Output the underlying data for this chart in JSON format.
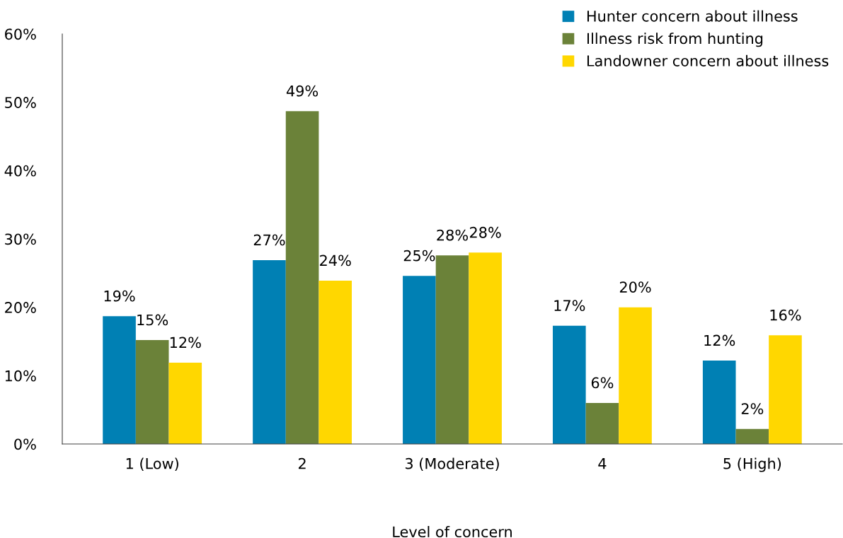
{
  "chart_data": {
    "type": "bar",
    "xlabel": "Level of concern",
    "categories": [
      "1 (Low)",
      "2",
      "3 (Moderate)",
      "4",
      "5 (High)"
    ],
    "series": [
      {
        "name": "Hunter concern about illness",
        "color": "#0080b4",
        "values": [
          18.7,
          26.9,
          24.6,
          17.3,
          12.2
        ],
        "value_labels": [
          "19%",
          "27%",
          "25%",
          "17%",
          "12%"
        ]
      },
      {
        "name": "Illness risk from hunting",
        "color": "#6b8239",
        "values": [
          15.2,
          48.7,
          27.6,
          6.0,
          2.2
        ],
        "value_labels": [
          "15%",
          "49%",
          "28%",
          "6%",
          "2%"
        ]
      },
      {
        "name": "Landowner concern about illness",
        "color": "#ffd700",
        "values": [
          11.9,
          23.9,
          28.0,
          20.0,
          15.9
        ],
        "value_labels": [
          "12%",
          "24%",
          "28%",
          "20%",
          "16%"
        ]
      }
    ],
    "ylim": [
      0,
      60
    ],
    "yticks": [
      {
        "value": 0,
        "label": "0%"
      },
      {
        "value": 10,
        "label": "10%"
      },
      {
        "value": 20,
        "label": "20%"
      },
      {
        "value": 30,
        "label": "30%"
      },
      {
        "value": 40,
        "label": "40%"
      },
      {
        "value": 50,
        "label": "50%"
      },
      {
        "value": 60,
        "label": "60%"
      }
    ],
    "grid": false,
    "legend": "top right"
  }
}
